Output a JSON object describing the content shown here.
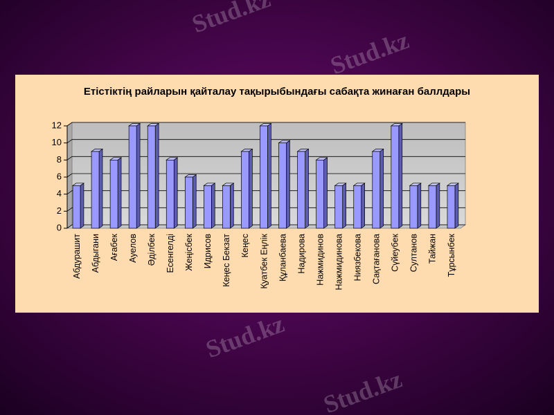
{
  "chart_data": {
    "type": "bar",
    "title": "Етістіктің райларын қайталау тақырыбындағы сабақта жинаған баллдары",
    "watermark": "Stud.kz",
    "categories": [
      "Абдурашит",
      "Абдыгани",
      "Ағабек",
      "Ауелов",
      "Әділбек",
      "Есенгелді",
      "Жеңісбек",
      "Идрисов",
      "Кеңес Бекзат",
      "Кеңес",
      "Қуатбек Еңлік",
      "Құланбаева",
      "Надирова",
      "Нажмидинов",
      "Нажмидинова",
      "Ниязбекова",
      "Сақтағанова",
      "Сүйеубек",
      "Султанов",
      "Тайжан",
      "Тұрсынбек"
    ],
    "values": [
      5,
      9,
      8,
      12,
      12,
      8,
      6,
      5,
      5,
      9,
      12,
      10,
      9,
      8,
      5,
      5,
      9,
      12,
      5,
      5,
      5
    ],
    "color": "#9999ff",
    "ylim": [
      0,
      12
    ],
    "yticks": [
      0,
      2,
      4,
      6,
      8,
      10,
      12
    ],
    "grid": true
  }
}
